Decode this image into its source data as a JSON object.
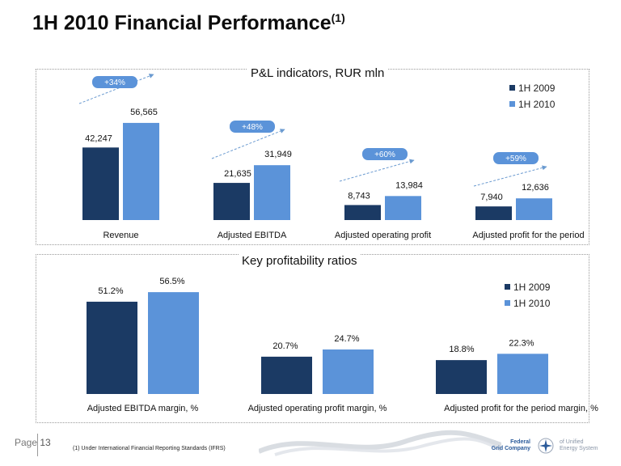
{
  "page": {
    "title": "1H 2010 Financial Performance",
    "title_sup": "(1)",
    "page_label": "Page",
    "page_number": "13",
    "footnote": "(1) Under International Financial Reporting Standards (IFRS)",
    "logo": {
      "name_lines": [
        "Federal",
        "Grid Company"
      ],
      "tagline_lines": [
        "of Unified",
        "Energy System"
      ],
      "icon": "star-emblem-icon"
    }
  },
  "colors": {
    "series_2009": "#1b3a64",
    "series_2010": "#5b93d9",
    "badge_fill": "#5b93d9",
    "arrow": "#6a9ad0"
  },
  "chart_data": [
    {
      "type": "bar",
      "title": "P&L indicators, RUR mln",
      "categories": [
        "Revenue",
        "Adjusted EBITDA",
        "Adjusted operating profit",
        "Adjusted profit for the period"
      ],
      "series": [
        {
          "name": "1H 2009",
          "values": [
            42247,
            21635,
            8743,
            7940
          ],
          "labels": [
            "42,247",
            "21,635",
            "8,743",
            "7,940"
          ]
        },
        {
          "name": "1H 2010",
          "values": [
            56565,
            31949,
            13984,
            12636
          ],
          "labels": [
            "56,565",
            "31,949",
            "13,984",
            "12,636"
          ]
        }
      ],
      "growth_labels": [
        "+34%",
        "+48%",
        "+60%",
        "+59%"
      ],
      "legend_position": "top-right",
      "grid": false,
      "ylim": [
        0,
        57000
      ]
    },
    {
      "type": "bar",
      "title": "Key profitability ratios",
      "categories": [
        "Adjusted EBITDA margin, %",
        "Adjusted operating profit margin, %",
        "Adjusted profit for the period margin, %"
      ],
      "series": [
        {
          "name": "1H 2009",
          "values": [
            51.2,
            20.7,
            18.8
          ],
          "labels": [
            "51.2%",
            "20.7%",
            "18.8%"
          ]
        },
        {
          "name": "1H 2010",
          "values": [
            56.5,
            24.7,
            22.3
          ],
          "labels": [
            "56.5%",
            "24.7%",
            "22.3%"
          ]
        }
      ],
      "legend_position": "top-right",
      "grid": false,
      "ylim": [
        0,
        57
      ]
    }
  ]
}
